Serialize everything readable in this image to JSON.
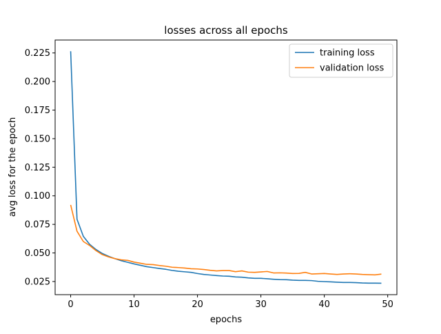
{
  "chart_data": {
    "type": "line",
    "title": "losses across all epochs",
    "xlabel": "epochs",
    "ylabel": "avg loss for the epoch",
    "xlim": [
      -2.45,
      51.45
    ],
    "ylim": [
      0.0135,
      0.2363
    ],
    "x_ticks": [
      0,
      10,
      20,
      30,
      40,
      50
    ],
    "x_tick_labels": [
      "0",
      "10",
      "20",
      "30",
      "40",
      "50"
    ],
    "y_ticks": [
      0.025,
      0.05,
      0.075,
      0.1,
      0.125,
      0.15,
      0.175,
      0.2,
      0.225
    ],
    "y_tick_labels": [
      "0.025",
      "0.050",
      "0.075",
      "0.100",
      "0.125",
      "0.150",
      "0.175",
      "0.200",
      "0.225"
    ],
    "grid": false,
    "legend_position": "top-right",
    "x": [
      0,
      1,
      2,
      3,
      4,
      5,
      6,
      7,
      8,
      9,
      10,
      11,
      12,
      13,
      14,
      15,
      16,
      17,
      18,
      19,
      20,
      21,
      22,
      23,
      24,
      25,
      26,
      27,
      28,
      29,
      30,
      31,
      32,
      33,
      34,
      35,
      36,
      37,
      38,
      39,
      40,
      41,
      42,
      43,
      44,
      45,
      46,
      47,
      48,
      49
    ],
    "series": [
      {
        "name": "training loss",
        "color": "#1f77b4",
        "values": [
          0.2265,
          0.0795,
          0.0645,
          0.0575,
          0.053,
          0.0495,
          0.047,
          0.045,
          0.0432,
          0.0418,
          0.0404,
          0.0392,
          0.038,
          0.0372,
          0.0364,
          0.0357,
          0.0347,
          0.034,
          0.0335,
          0.033,
          0.032,
          0.0312,
          0.0307,
          0.0302,
          0.0298,
          0.0296,
          0.029,
          0.0288,
          0.0282,
          0.0278,
          0.0278,
          0.0274,
          0.027,
          0.0267,
          0.0266,
          0.0262,
          0.026,
          0.026,
          0.0258,
          0.0252,
          0.0249,
          0.0247,
          0.0244,
          0.0242,
          0.0242,
          0.024,
          0.0237,
          0.0236,
          0.0236,
          0.0235
        ]
      },
      {
        "name": "validation loss",
        "color": "#ff7f0e",
        "values": [
          0.092,
          0.069,
          0.06,
          0.0565,
          0.052,
          0.0485,
          0.0465,
          0.045,
          0.044,
          0.0435,
          0.042,
          0.041,
          0.04,
          0.0398,
          0.039,
          0.0384,
          0.0375,
          0.0372,
          0.0368,
          0.0362,
          0.036,
          0.0355,
          0.0348,
          0.0343,
          0.0346,
          0.0346,
          0.0336,
          0.0343,
          0.0332,
          0.033,
          0.0334,
          0.0338,
          0.0325,
          0.0326,
          0.0324,
          0.032,
          0.0321,
          0.033,
          0.0316,
          0.0318,
          0.032,
          0.0316,
          0.0312,
          0.0316,
          0.0318,
          0.0316,
          0.0312,
          0.031,
          0.0308,
          0.0315
        ]
      }
    ]
  }
}
